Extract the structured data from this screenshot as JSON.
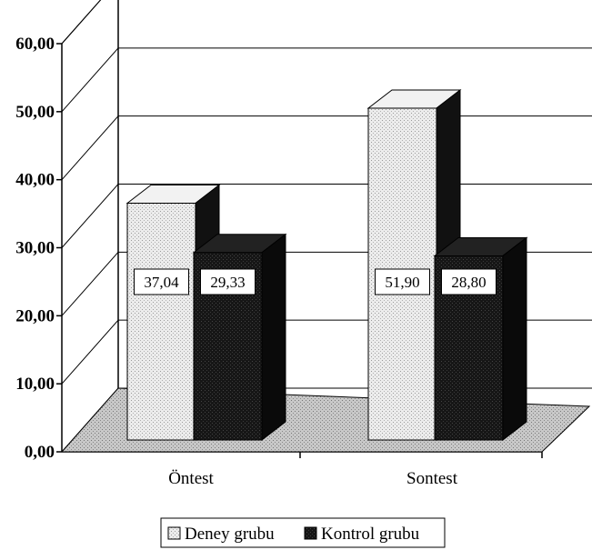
{
  "chart_data": {
    "type": "bar",
    "categories": [
      "Öntest",
      "Sontest"
    ],
    "series": [
      {
        "name": "Deney grubu",
        "values": [
          37.04,
          51.9
        ],
        "labels": [
          "37,04",
          "51,90"
        ],
        "color": "#e6e6e6"
      },
      {
        "name": "Kontrol grubu",
        "values": [
          29.33,
          28.8
        ],
        "labels": [
          "29,33",
          "28,80"
        ],
        "color": "#111111"
      }
    ],
    "ylim": [
      0,
      60
    ],
    "yticks": [
      "0,00",
      "10,00",
      "20,00",
      "30,00",
      "40,00",
      "50,00",
      "60,00"
    ],
    "grid": true,
    "legend_position": "bottom",
    "three_d": true
  }
}
